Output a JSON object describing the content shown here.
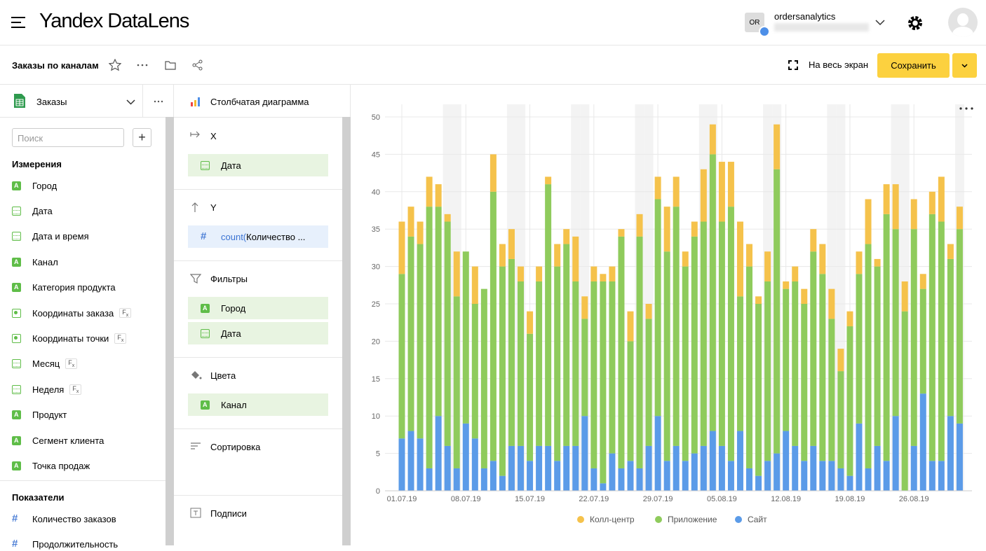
{
  "header": {
    "brand": "Yandex",
    "product": "DataLens",
    "avatar_initials": "OR",
    "user": "ordersanalytics"
  },
  "toolbar": {
    "title": "Заказы по каналам",
    "fullscreen": "На весь экран",
    "save": "Сохранить"
  },
  "dataset": {
    "name": "Заказы",
    "search_placeholder": "Поиск",
    "dimensions_title": "Измерения",
    "dimensions": [
      {
        "name": "Город",
        "kind": "string"
      },
      {
        "name": "Дата",
        "kind": "date"
      },
      {
        "name": "Дата и время",
        "kind": "date"
      },
      {
        "name": "Канал",
        "kind": "string"
      },
      {
        "name": "Категория продукта",
        "kind": "string"
      },
      {
        "name": "Координаты заказа",
        "kind": "geo",
        "formula": true
      },
      {
        "name": "Координаты точки",
        "kind": "geo",
        "formula": true
      },
      {
        "name": "Месяц",
        "kind": "date",
        "formula": true
      },
      {
        "name": "Неделя",
        "kind": "date",
        "formula": true
      },
      {
        "name": "Продукт",
        "kind": "string"
      },
      {
        "name": "Сегмент клиента",
        "kind": "string"
      },
      {
        "name": "Точка продаж",
        "kind": "string"
      }
    ],
    "measures_title": "Показатели",
    "measures": [
      {
        "name": "Количество заказов",
        "kind": "measure"
      },
      {
        "name": "Продолжительность",
        "kind": "measure"
      }
    ]
  },
  "wizard": {
    "chart_type": "Столбчатая диаграмма",
    "sections": [
      {
        "title": "X",
        "icon": "arrow-right",
        "items": [
          {
            "name": "Дата",
            "kind": "date"
          }
        ]
      },
      {
        "title": "Y",
        "icon": "arrow-up",
        "items": [
          {
            "func": "count(",
            "name": "Количество ...",
            "kind": "measure"
          }
        ]
      },
      {
        "title": "Фильтры",
        "icon": "filter",
        "items": [
          {
            "name": "Город",
            "kind": "string"
          },
          {
            "name": "Дата",
            "kind": "date"
          }
        ]
      },
      {
        "title": "Цвета",
        "icon": "bucket",
        "items": [
          {
            "name": "Канал",
            "kind": "string"
          }
        ]
      },
      {
        "title": "Сортировка",
        "icon": "sort",
        "items": []
      },
      {
        "title": "Подписи",
        "icon": "text",
        "items": []
      }
    ]
  },
  "chart_data": {
    "type": "bar",
    "stacked": true,
    "categories": [
      "01.07.19",
      null,
      null,
      null,
      null,
      null,
      null,
      "08.07.19",
      null,
      null,
      null,
      null,
      null,
      null,
      "15.07.19",
      null,
      null,
      null,
      null,
      null,
      null,
      "22.07.19",
      null,
      null,
      null,
      null,
      null,
      null,
      "29.07.19",
      null,
      null,
      null,
      null,
      null,
      null,
      "05.08.19",
      null,
      null,
      null,
      null,
      null,
      null,
      "12.08.19",
      null,
      null,
      null,
      null,
      null,
      null,
      "19.08.19",
      null,
      null,
      null,
      null,
      null,
      null,
      "26.08.19",
      null,
      null,
      null,
      null,
      null
    ],
    "series": [
      {
        "name": "Сайт",
        "color": "#5b9be8",
        "values": [
          7,
          8,
          7,
          3,
          10,
          6,
          3,
          9,
          7,
          3,
          4,
          2,
          6,
          6,
          4,
          6,
          6,
          4,
          6,
          6,
          10,
          3,
          1,
          5,
          3,
          4,
          3,
          6,
          10,
          4,
          6,
          4,
          5,
          6,
          8,
          6,
          4,
          8,
          3,
          2,
          4,
          5,
          8,
          6,
          4,
          6,
          4,
          4,
          3,
          2,
          9,
          3,
          6,
          4,
          10,
          0,
          6,
          13,
          4,
          4,
          10,
          9
        ]
      },
      {
        "name": "Приложение",
        "color": "#8fcb5c",
        "values": [
          22,
          26,
          26,
          35,
          28,
          30,
          23,
          23,
          18,
          24,
          36,
          28,
          25,
          22,
          17,
          22,
          35,
          26,
          27,
          22,
          13,
          25,
          27,
          23,
          31,
          16,
          31,
          17,
          29,
          28,
          32,
          26,
          29,
          30,
          37,
          30,
          34,
          18,
          27,
          23,
          24,
          38,
          19,
          22,
          21,
          26,
          25,
          19,
          13,
          20,
          20,
          30,
          24,
          33,
          25,
          24,
          29,
          14,
          33,
          32,
          21,
          26
        ]
      },
      {
        "name": "Колл-центр",
        "color": "#f5c24b",
        "values": [
          7,
          4,
          3,
          4,
          3,
          1,
          6,
          0,
          5,
          0,
          5,
          3,
          4,
          2,
          3,
          2,
          1,
          3,
          2,
          6,
          3,
          2,
          1,
          2,
          1,
          4,
          3,
          2,
          3,
          6,
          4,
          2,
          2,
          7,
          4,
          8,
          6,
          10,
          3,
          1,
          4,
          6,
          1,
          2,
          2,
          3,
          4,
          4,
          3,
          2,
          3,
          6,
          1,
          4,
          6,
          4,
          4,
          2,
          3,
          6,
          2,
          3
        ]
      }
    ],
    "legend_order": [
      2,
      1,
      0
    ],
    "ylim": [
      0,
      50
    ],
    "yticks": [
      0,
      5,
      10,
      15,
      20,
      25,
      30,
      35,
      40,
      45,
      50
    ],
    "grid": true
  }
}
